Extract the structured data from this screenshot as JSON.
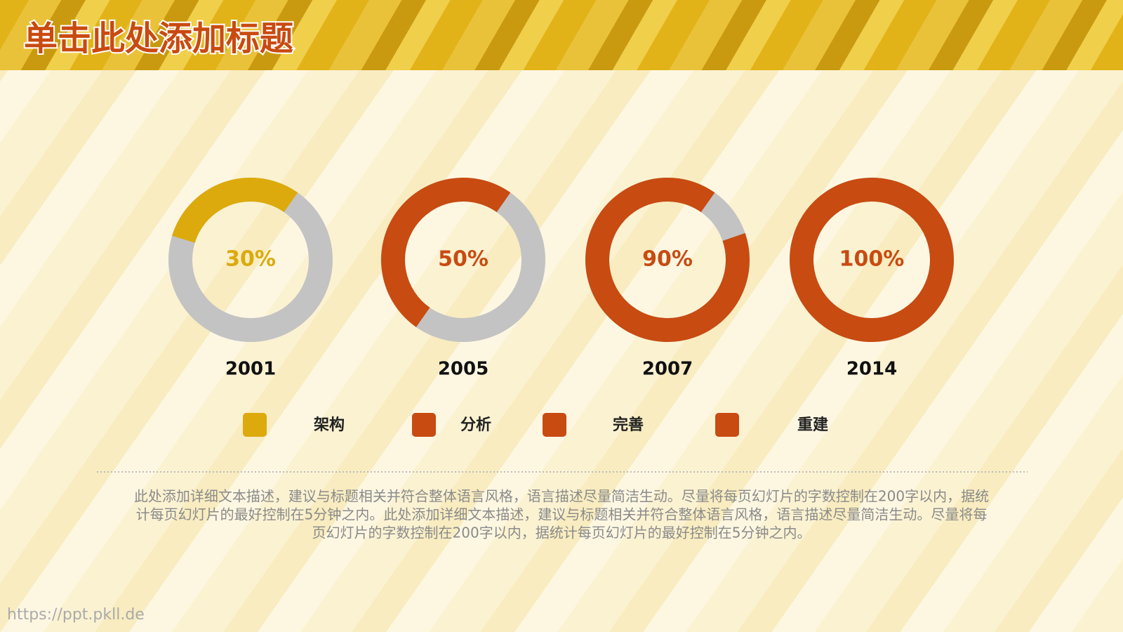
{
  "header": {
    "title": "单击此处添加标题"
  },
  "chart_data": [
    {
      "type": "donut",
      "categories": [
        "2001"
      ],
      "series": [
        {
          "name": "架构",
          "color": "#dcaa0c",
          "values": [
            30
          ],
          "value_labels": [
            "30%"
          ]
        }
      ],
      "range": [
        0,
        100
      ],
      "track_color": "#c3c3c3"
    },
    {
      "type": "donut",
      "categories": [
        "2005"
      ],
      "series": [
        {
          "name": "分析",
          "color": "#c84b12",
          "values": [
            50
          ],
          "value_labels": [
            "50%"
          ]
        }
      ],
      "range": [
        0,
        100
      ],
      "track_color": "#c3c3c3"
    },
    {
      "type": "donut",
      "categories": [
        "2007"
      ],
      "series": [
        {
          "name": "完善",
          "color": "#c84b12",
          "values": [
            90
          ],
          "value_labels": [
            "90%"
          ]
        }
      ],
      "range": [
        0,
        100
      ],
      "track_color": "#c3c3c3"
    },
    {
      "type": "donut",
      "categories": [
        "2014"
      ],
      "series": [
        {
          "name": "重建",
          "color": "#c84b12",
          "values": [
            100
          ],
          "value_labels": [
            "100%"
          ]
        }
      ],
      "range": [
        0,
        100
      ],
      "track_color": "#c3c3c3"
    }
  ],
  "description": [
    "此处添加详细文本描述，建议与标题相关并符合整体语言风格，语言描述尽量简洁生动。尽量将每页幻灯片的字数控制在200字以内，据统",
    "计每页幻灯片的最好控制在5分钟之内。此处添加详细文本描述，建议与标题相关并符合整体语言风格，语言描述尽量简洁生动。尽量将每",
    "页幻灯片的字数控制在200字以内，据统计每页幻灯片的最好控制在5分钟之内。"
  ],
  "watermark": "https://ppt.pkll.de"
}
